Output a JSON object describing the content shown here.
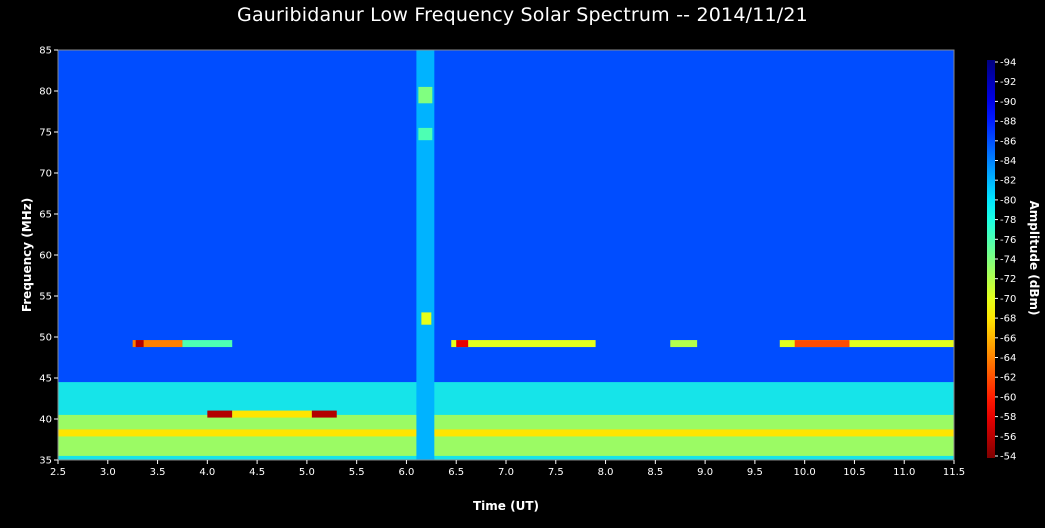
{
  "chart_data": {
    "type": "heatmap",
    "title": "Gauribidanur Low Frequency Solar Spectrum -- 2014/11/21",
    "xlabel": "Time  (UT)",
    "ylabel": "Frequency  (MHz)",
    "colorbar_label": "Amplitude (dBm)",
    "xlim": [
      2.5,
      11.5
    ],
    "ylim": [
      35,
      85
    ],
    "clim": [
      -94,
      -54
    ],
    "x_ticks": [
      "2.5",
      "3.0",
      "3.5",
      "4.0",
      "4.5",
      "5.0",
      "5.5",
      "6.0",
      "6.5",
      "7.0",
      "7.5",
      "8.0",
      "8.5",
      "9.0",
      "9.5",
      "10.0",
      "10.5",
      "11.0",
      "11.5"
    ],
    "y_ticks": [
      "35",
      "40",
      "45",
      "50",
      "55",
      "60",
      "65",
      "70",
      "75",
      "80",
      "85"
    ],
    "colorbar_ticks": [
      "-94",
      "-92",
      "-90",
      "-88",
      "-86",
      "-84",
      "-82",
      "-80",
      "-78",
      "-76",
      "-74",
      "-72",
      "-70",
      "-68",
      "-66",
      "-64",
      "-62",
      "-60",
      "-58",
      "-56",
      "-54"
    ],
    "background_dbm": -86,
    "features": [
      {
        "kind": "band",
        "f": [
          35,
          44.5
        ],
        "t": [
          2.5,
          11.5
        ],
        "dbm": -78
      },
      {
        "kind": "band",
        "f": [
          35.5,
          40.5
        ],
        "t": [
          2.5,
          11.5
        ],
        "dbm": -72
      },
      {
        "kind": "line",
        "f": 38.3,
        "t": [
          2.5,
          11.5
        ],
        "dbm": -68
      },
      {
        "kind": "line",
        "f": 49.2,
        "t": [
          3.25,
          3.75
        ],
        "dbm": -64
      },
      {
        "kind": "line",
        "f": 49.2,
        "t": [
          3.28,
          3.36
        ],
        "dbm": -56
      },
      {
        "kind": "line",
        "f": 49.2,
        "t": [
          3.75,
          4.25
        ],
        "dbm": -76
      },
      {
        "kind": "line",
        "f": 49.2,
        "t": [
          6.45,
          7.9
        ],
        "dbm": -70
      },
      {
        "kind": "line",
        "f": 49.2,
        "t": [
          6.5,
          6.62
        ],
        "dbm": -58
      },
      {
        "kind": "line",
        "f": 49.2,
        "t": [
          8.65,
          8.92
        ],
        "dbm": -72
      },
      {
        "kind": "line",
        "f": 49.2,
        "t": [
          9.75,
          11.5
        ],
        "dbm": -70
      },
      {
        "kind": "line",
        "f": 49.2,
        "t": [
          9.9,
          10.45
        ],
        "dbm": -62
      },
      {
        "kind": "line",
        "f": 40.6,
        "t": [
          4.0,
          4.25
        ],
        "dbm": -56
      },
      {
        "kind": "line",
        "f": 40.6,
        "t": [
          4.25,
          5.05
        ],
        "dbm": -68
      },
      {
        "kind": "line",
        "f": 40.6,
        "t": [
          5.05,
          5.3
        ],
        "dbm": -56
      },
      {
        "kind": "patch",
        "f": [
          35,
          85
        ],
        "t": [
          6.1,
          6.28
        ],
        "dbm": -82
      },
      {
        "kind": "patch",
        "f": [
          78.5,
          80.5
        ],
        "t": [
          6.12,
          6.26
        ],
        "dbm": -74
      },
      {
        "kind": "patch",
        "f": [
          74,
          75.5
        ],
        "t": [
          6.12,
          6.26
        ],
        "dbm": -76
      },
      {
        "kind": "patch",
        "f": [
          51.5,
          53
        ],
        "t": [
          6.15,
          6.25
        ],
        "dbm": -70
      }
    ]
  }
}
